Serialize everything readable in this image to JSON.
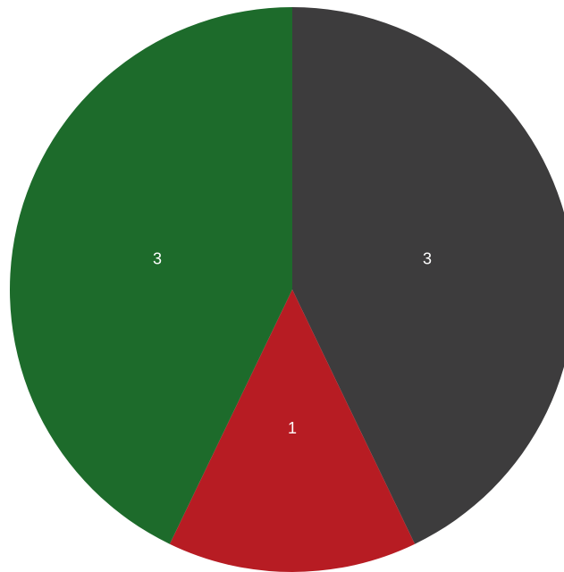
{
  "chart_data": {
    "type": "pie",
    "categories": [
      "",
      "",
      ""
    ],
    "values": [
      3,
      1,
      3
    ],
    "data_labels": [
      "3",
      "1",
      "3"
    ],
    "colors": [
      "#3d3c3d",
      "#b71c23",
      "#1d6b2b"
    ],
    "start_angle": "12 o'clock",
    "direction": "clockwise",
    "legend": "none",
    "title": ""
  }
}
